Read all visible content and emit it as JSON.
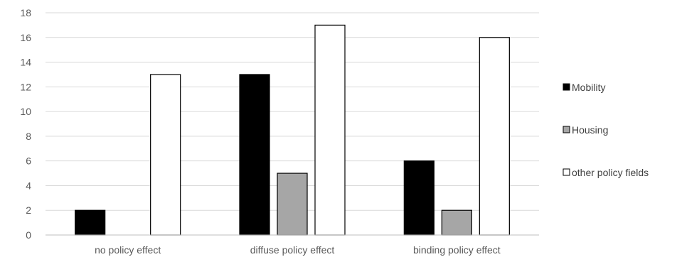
{
  "chart_data": {
    "type": "bar",
    "categories": [
      "no policy effect",
      "diffuse policy effect",
      "binding policy effect"
    ],
    "series": [
      {
        "name": "Mobility",
        "values": [
          2,
          13,
          6
        ],
        "color": "#000000"
      },
      {
        "name": "Housing",
        "values": [
          0,
          5,
          2
        ],
        "color": "#a6a6a6"
      },
      {
        "name": "other policy fields",
        "values": [
          13,
          17,
          16
        ],
        "color": "#ffffff"
      }
    ],
    "yticks": [
      "0",
      "2",
      "4",
      "6",
      "8",
      "10",
      "12",
      "14",
      "16",
      "18"
    ],
    "ylim": [
      0,
      18
    ],
    "grid": true,
    "legend_position": "right"
  }
}
